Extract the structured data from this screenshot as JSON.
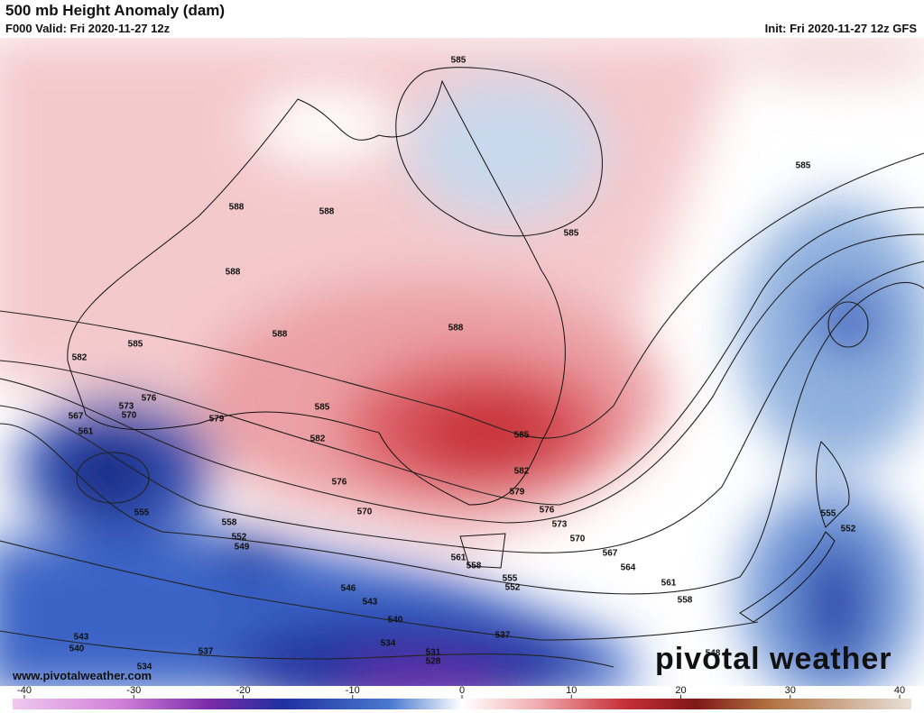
{
  "header": {
    "title": "500 mb Height Anomaly (dam)",
    "valid": "F000 Valid: Fri 2020-11-27 12z",
    "init": "Init: Fri 2020-11-27 12z GFS"
  },
  "contour_labels": [
    "585",
    "585",
    "585",
    "588",
    "588",
    "588",
    "588",
    "588",
    "585",
    "582",
    "576",
    "573",
    "570",
    "567",
    "561",
    "579",
    "585",
    "582",
    "585",
    "582",
    "579",
    "576",
    "576",
    "573",
    "570",
    "570",
    "567",
    "564",
    "561",
    "558",
    "558",
    "555",
    "552",
    "549",
    "561",
    "558",
    "555",
    "552",
    "546",
    "543",
    "540",
    "537",
    "534",
    "531",
    "528",
    "537",
    "543",
    "540",
    "534",
    "555",
    "552",
    "548"
  ],
  "colorbar": {
    "range": [
      -40,
      40
    ],
    "ticks": [
      -40,
      -30,
      -20,
      -10,
      0,
      10,
      20,
      30,
      40
    ]
  },
  "footer": {
    "website": "www.pivotalweather.com",
    "watermark": "pivotal weather"
  }
}
